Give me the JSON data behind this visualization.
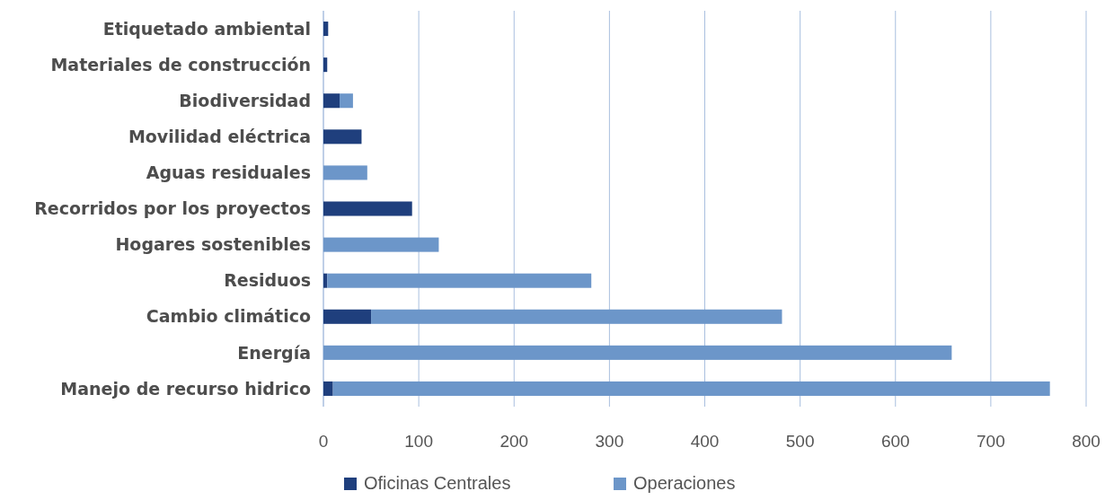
{
  "chart_data": {
    "type": "bar",
    "orientation": "horizontal",
    "stacked": true,
    "categories": [
      "Etiquetado ambiental",
      "Materiales de construcción",
      "Biodiversidad",
      "Movilidad eléctrica",
      "Aguas residuales",
      "Recorridos por los proyectos",
      "Hogares sostenibles",
      "Residuos",
      "Cambio climático",
      "Energía",
      "Manejo de recurso hidrico"
    ],
    "series": [
      {
        "name": "Oficinas Centrales",
        "color": "#1f3f7d",
        "values": [
          5,
          4,
          17,
          40,
          0,
          93,
          0,
          4,
          50,
          0,
          10
        ]
      },
      {
        "name": "Operaciones",
        "color": "#6c96c9",
        "values": [
          0,
          0,
          14,
          0,
          46,
          0,
          121,
          277,
          431,
          659,
          752
        ]
      }
    ],
    "xlim": [
      0,
      800
    ],
    "xticks": [
      0,
      100,
      200,
      300,
      400,
      500,
      600,
      700,
      800
    ],
    "grid": "x",
    "legend": "bottom"
  }
}
